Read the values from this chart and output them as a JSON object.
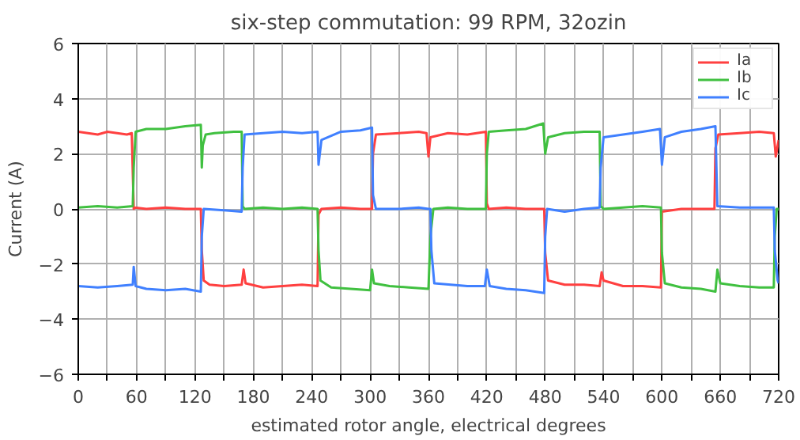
{
  "chart_data": {
    "type": "line",
    "title": "six-step commutation: 99 RPM, 32ozin",
    "xlabel": "estimated rotor angle, electrical degrees",
    "ylabel": "Current (A)",
    "xlim": [
      0,
      720
    ],
    "ylim": [
      -6,
      6
    ],
    "xticks": [
      0,
      {
        "value": 30,
        "label": null
      },
      60,
      {
        "value": 90,
        "label": null
      },
      120,
      {
        "value": 150,
        "label": null
      },
      180,
      {
        "value": 210,
        "label": null
      },
      240,
      {
        "value": 270,
        "label": null
      },
      300,
      {
        "value": 330,
        "label": null
      },
      360,
      {
        "value": 390,
        "label": null
      },
      420,
      {
        "value": 450,
        "label": null
      },
      480,
      {
        "value": 510,
        "label": null
      },
      540,
      {
        "value": 570,
        "label": null
      },
      600,
      {
        "value": 630,
        "label": null
      },
      660,
      {
        "value": 690,
        "label": null
      },
      720
    ],
    "yticks": [
      {
        "value": -6,
        "label": "−6"
      },
      {
        "value": -4,
        "label": "−4"
      },
      {
        "value": -2,
        "label": "−2"
      },
      0,
      2,
      4,
      6
    ],
    "grid": true,
    "legend": "top right",
    "line_style": "solid",
    "series": [
      {
        "name": "Ia",
        "color": "#ff4040",
        "x": [
          0,
          10,
          20,
          30,
          40,
          50,
          55,
          57,
          58,
          70,
          90,
          110,
          126,
          127,
          129,
          135,
          150,
          168,
          170,
          172,
          190,
          210,
          230,
          246,
          247,
          250,
          270,
          290,
          302,
          303,
          306,
          330,
          350,
          358,
          360,
          362,
          380,
          400,
          419,
          420,
          422,
          440,
          460,
          479,
          480,
          483,
          500,
          520,
          536,
          538,
          540,
          560,
          580,
          599,
          600,
          620,
          640,
          654,
          655,
          658,
          680,
          700,
          715,
          717,
          720
        ],
        "values": [
          2.8,
          2.75,
          2.7,
          2.8,
          2.75,
          2.7,
          2.75,
          0,
          0.05,
          0.0,
          0.05,
          0.0,
          0.0,
          -1.5,
          -2.6,
          -2.75,
          -2.8,
          -2.75,
          -2.2,
          -2.7,
          -2.85,
          -2.8,
          -2.75,
          -2.8,
          -0.2,
          0.0,
          0.05,
          0,
          0.0,
          2.0,
          2.7,
          2.75,
          2.8,
          2.75,
          1.9,
          2.6,
          2.75,
          2.7,
          2.8,
          0.2,
          0.0,
          0.05,
          0.0,
          0.0,
          -1.6,
          -2.6,
          -2.75,
          -2.75,
          -2.8,
          -2.3,
          -2.6,
          -2.8,
          -2.8,
          -2.85,
          -0.1,
          0.0,
          0.0,
          0.0,
          2.2,
          2.7,
          2.75,
          2.8,
          2.75,
          1.9,
          2.5
        ]
      },
      {
        "name": "Ib",
        "color": "#40c040",
        "x": [
          0,
          20,
          40,
          56,
          57,
          59,
          70,
          90,
          110,
          126,
          127,
          128,
          131,
          140,
          160,
          168,
          169,
          171,
          190,
          210,
          230,
          246,
          247,
          249,
          260,
          280,
          300,
          302,
          304,
          320,
          340,
          360,
          362,
          365,
          380,
          400,
          419,
          420,
          422,
          440,
          460,
          478,
          480,
          483,
          500,
          520,
          536,
          537,
          540,
          560,
          580,
          599,
          600,
          603,
          620,
          640,
          655,
          657,
          660,
          680,
          700,
          715,
          716,
          718,
          720
        ],
        "values": [
          0.05,
          0.1,
          0.05,
          0.1,
          1.5,
          2.8,
          2.9,
          2.9,
          3.0,
          3.05,
          1.5,
          2.3,
          2.7,
          2.75,
          2.8,
          2.8,
          0.1,
          0.0,
          0.05,
          0.0,
          0.05,
          0.0,
          -1.5,
          -2.6,
          -2.85,
          -2.9,
          -2.95,
          -2.2,
          -2.7,
          -2.8,
          -2.85,
          -2.9,
          -1.0,
          0.0,
          0.05,
          0.0,
          0.0,
          2.0,
          2.8,
          2.85,
          2.9,
          3.1,
          2.0,
          2.6,
          2.75,
          2.8,
          2.8,
          0.1,
          0.0,
          0.05,
          0.1,
          0.05,
          -1.6,
          -2.7,
          -2.85,
          -2.9,
          -3.0,
          -2.2,
          -2.7,
          -2.8,
          -2.85,
          -2.85,
          -1.0,
          0.0,
          0.0
        ]
      },
      {
        "name": "Ic",
        "color": "#4080ff",
        "x": [
          0,
          20,
          40,
          56,
          57,
          59,
          70,
          90,
          110,
          126,
          127,
          129,
          150,
          168,
          169,
          171,
          190,
          210,
          230,
          246,
          247,
          250,
          270,
          290,
          302,
          303,
          306,
          330,
          350,
          360,
          362,
          363,
          366,
          400,
          418,
          420,
          423,
          440,
          460,
          479,
          480,
          482,
          500,
          520,
          536,
          537,
          540,
          560,
          580,
          598,
          600,
          603,
          620,
          640,
          655,
          657,
          680,
          700,
          715,
          716,
          719,
          720
        ],
        "values": [
          -2.8,
          -2.85,
          -2.8,
          -2.75,
          -2.1,
          -2.8,
          -2.9,
          -2.95,
          -2.9,
          -3.0,
          -1.0,
          0.0,
          -0.05,
          -0.1,
          1.5,
          2.7,
          2.75,
          2.8,
          2.75,
          2.8,
          1.6,
          2.5,
          2.8,
          2.85,
          2.95,
          0.5,
          0.0,
          0.0,
          0.05,
          0.0,
          0.0,
          -1.5,
          -2.7,
          -2.8,
          -2.8,
          -2.2,
          -2.8,
          -2.9,
          -2.95,
          -3.05,
          -1.0,
          0.0,
          -0.1,
          0.0,
          0.05,
          1.5,
          2.6,
          2.7,
          2.8,
          2.9,
          1.6,
          2.6,
          2.8,
          2.9,
          3.0,
          0.1,
          0.05,
          0.05,
          0.05,
          -1.5,
          -2.6,
          -2.7
        ]
      }
    ]
  }
}
